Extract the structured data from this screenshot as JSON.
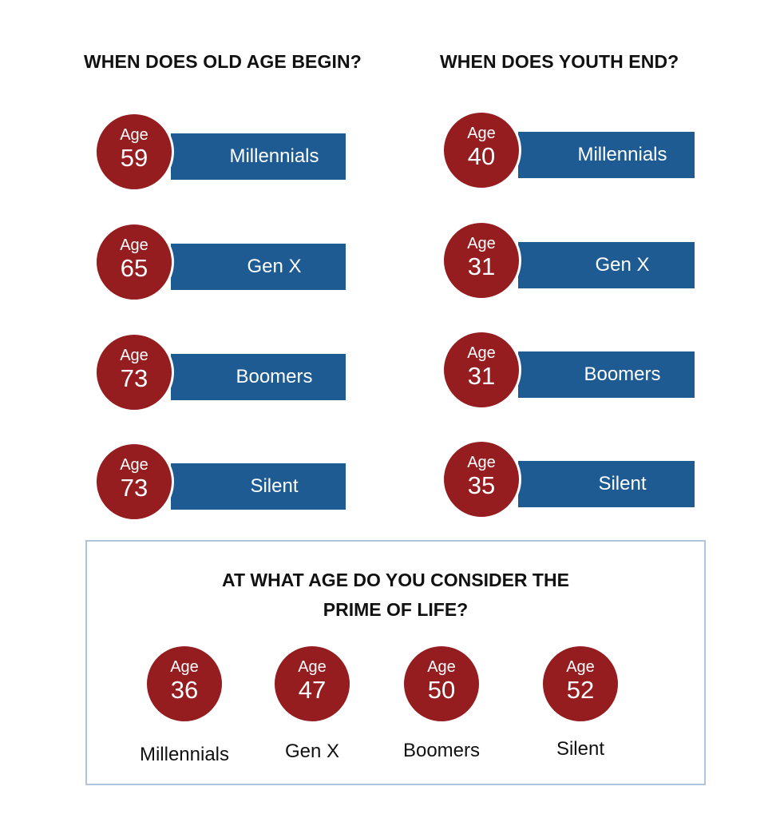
{
  "old_age": {
    "heading": "WHEN DOES OLD AGE BEGIN?",
    "rows": [
      {
        "age_label": "Age",
        "age": "59",
        "generation": "Millennials"
      },
      {
        "age_label": "Age",
        "age": "65",
        "generation": "Gen X"
      },
      {
        "age_label": "Age",
        "age": "73",
        "generation": "Boomers"
      },
      {
        "age_label": "Age",
        "age": "73",
        "generation": "Silent"
      }
    ]
  },
  "youth_end": {
    "heading": "WHEN DOES YOUTH END?",
    "rows": [
      {
        "age_label": "Age",
        "age": "40",
        "generation": "Millennials"
      },
      {
        "age_label": "Age",
        "age": "31",
        "generation": "Gen X"
      },
      {
        "age_label": "Age",
        "age": "31",
        "generation": "Boomers"
      },
      {
        "age_label": "Age",
        "age": "35",
        "generation": "Silent"
      }
    ]
  },
  "prime_of_life": {
    "title_line1": "AT WHAT AGE DO YOU CONSIDER THE",
    "title_line2": "PRIME OF LIFE?",
    "items": [
      {
        "age_label": "Age",
        "age": "36",
        "generation": "Millennials"
      },
      {
        "age_label": "Age",
        "age": "47",
        "generation": "Gen X"
      },
      {
        "age_label": "Age",
        "age": "50",
        "generation": "Boomers"
      },
      {
        "age_label": "Age",
        "age": "52",
        "generation": "Silent"
      }
    ]
  },
  "colors": {
    "badge": "#951c1f",
    "bar": "#1f5b93",
    "box_border": "#aec6dd"
  }
}
